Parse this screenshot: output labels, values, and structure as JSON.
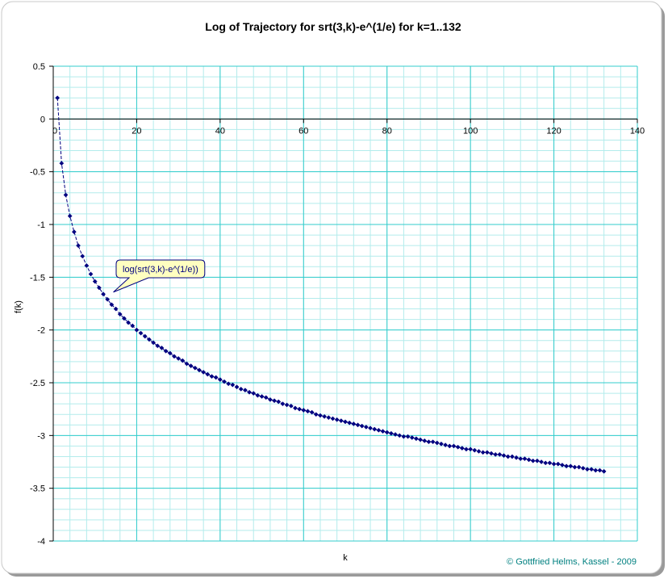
{
  "chart_data": {
    "type": "scatter",
    "title": "Log of Trajectory for srt(3,k)-e^(1/e) for k=1..132",
    "xlabel": "k",
    "ylabel": "f(k)",
    "xlim": [
      0,
      140
    ],
    "ylim": [
      -4,
      0.5
    ],
    "x_ticks": [
      0,
      20,
      40,
      60,
      80,
      100,
      120,
      140
    ],
    "y_ticks": [
      0.5,
      0,
      -0.5,
      -1,
      -1.5,
      -2,
      -2.5,
      -3,
      -3.5,
      -4
    ],
    "x_tick_labels": [
      "0",
      "20",
      "40",
      "60",
      "80",
      "100",
      "120",
      "140"
    ],
    "y_tick_labels": [
      "0.5",
      "0",
      "-0.5",
      "-1",
      "-1.5",
      "-2",
      "-2.5",
      "-3",
      "-3.5",
      "-4"
    ],
    "grid": true,
    "series": [
      {
        "name": "log(srt(3,k)-e^(1/e))",
        "color": "#000080",
        "x": [
          1,
          2,
          3,
          4,
          5,
          6,
          7,
          8,
          9,
          10,
          11,
          12,
          13,
          14,
          15,
          16,
          17,
          18,
          19,
          20,
          21,
          22,
          23,
          24,
          25,
          26,
          27,
          28,
          29,
          30,
          31,
          32,
          33,
          34,
          35,
          36,
          37,
          38,
          39,
          40,
          41,
          42,
          43,
          44,
          45,
          46,
          47,
          48,
          49,
          50,
          51,
          52,
          53,
          54,
          55,
          56,
          57,
          58,
          59,
          60,
          61,
          62,
          63,
          64,
          65,
          66,
          67,
          68,
          69,
          70,
          71,
          72,
          73,
          74,
          75,
          76,
          77,
          78,
          79,
          80,
          81,
          82,
          83,
          84,
          85,
          86,
          87,
          88,
          89,
          90,
          91,
          92,
          93,
          94,
          95,
          96,
          97,
          98,
          99,
          100,
          101,
          102,
          103,
          104,
          105,
          106,
          107,
          108,
          109,
          110,
          111,
          112,
          113,
          114,
          115,
          116,
          117,
          118,
          119,
          120,
          121,
          122,
          123,
          124,
          125,
          126,
          127,
          128,
          129,
          130,
          131,
          132
        ],
        "y": [
          0.2,
          -0.42,
          -0.72,
          -0.92,
          -1.07,
          -1.2,
          -1.3,
          -1.39,
          -1.47,
          -1.54,
          -1.6,
          -1.66,
          -1.71,
          -1.76,
          -1.8,
          -1.85,
          -1.89,
          -1.93,
          -1.96,
          -2,
          -2.03,
          -2.06,
          -2.09,
          -2.12,
          -2.15,
          -2.17,
          -2.2,
          -2.22,
          -2.25,
          -2.27,
          -2.29,
          -2.32,
          -2.34,
          -2.36,
          -2.38,
          -2.4,
          -2.42,
          -2.44,
          -2.45,
          -2.47,
          -2.49,
          -2.51,
          -2.52,
          -2.54,
          -2.56,
          -2.57,
          -2.59,
          -2.6,
          -2.62,
          -2.63,
          -2.64,
          -2.66,
          -2.67,
          -2.68,
          -2.7,
          -2.71,
          -2.72,
          -2.74,
          -2.75,
          -2.76,
          -2.77,
          -2.78,
          -2.8,
          -2.81,
          -2.82,
          -2.83,
          -2.84,
          -2.85,
          -2.86,
          -2.87,
          -2.88,
          -2.89,
          -2.9,
          -2.91,
          -2.92,
          -2.93,
          -2.94,
          -2.95,
          -2.96,
          -2.97,
          -2.98,
          -2.99,
          -3,
          -3.01,
          -3.01,
          -3.02,
          -3.03,
          -3.04,
          -3.05,
          -3.06,
          -3.06,
          -3.07,
          -3.08,
          -3.09,
          -3.1,
          -3.1,
          -3.11,
          -3.12,
          -3.13,
          -3.13,
          -3.14,
          -3.15,
          -3.16,
          -3.16,
          -3.17,
          -3.18,
          -3.18,
          -3.19,
          -3.2,
          -3.2,
          -3.21,
          -3.22,
          -3.22,
          -3.23,
          -3.24,
          -3.24,
          -3.25,
          -3.26,
          -3.26,
          -3.27,
          -3.27,
          -3.28,
          -3.29,
          -3.29,
          -3.3,
          -3.3,
          -3.31,
          -3.32,
          -3.32,
          -3.33,
          -3.33,
          -3.34
        ]
      }
    ],
    "annotations": [
      {
        "text": "log(srt(3,k)-e^(1/e))",
        "points_to": {
          "x": 15,
          "y": -1.71
        }
      }
    ],
    "footer": "© Gottfried Helms, Kassel - 2009",
    "colors": {
      "grid_major": "#33cccc",
      "grid_minor": "#b3ecec",
      "series": "#000080",
      "callout_fill": "#ffffc0",
      "callout_border": "#000080",
      "footer_text": "#008080"
    }
  }
}
